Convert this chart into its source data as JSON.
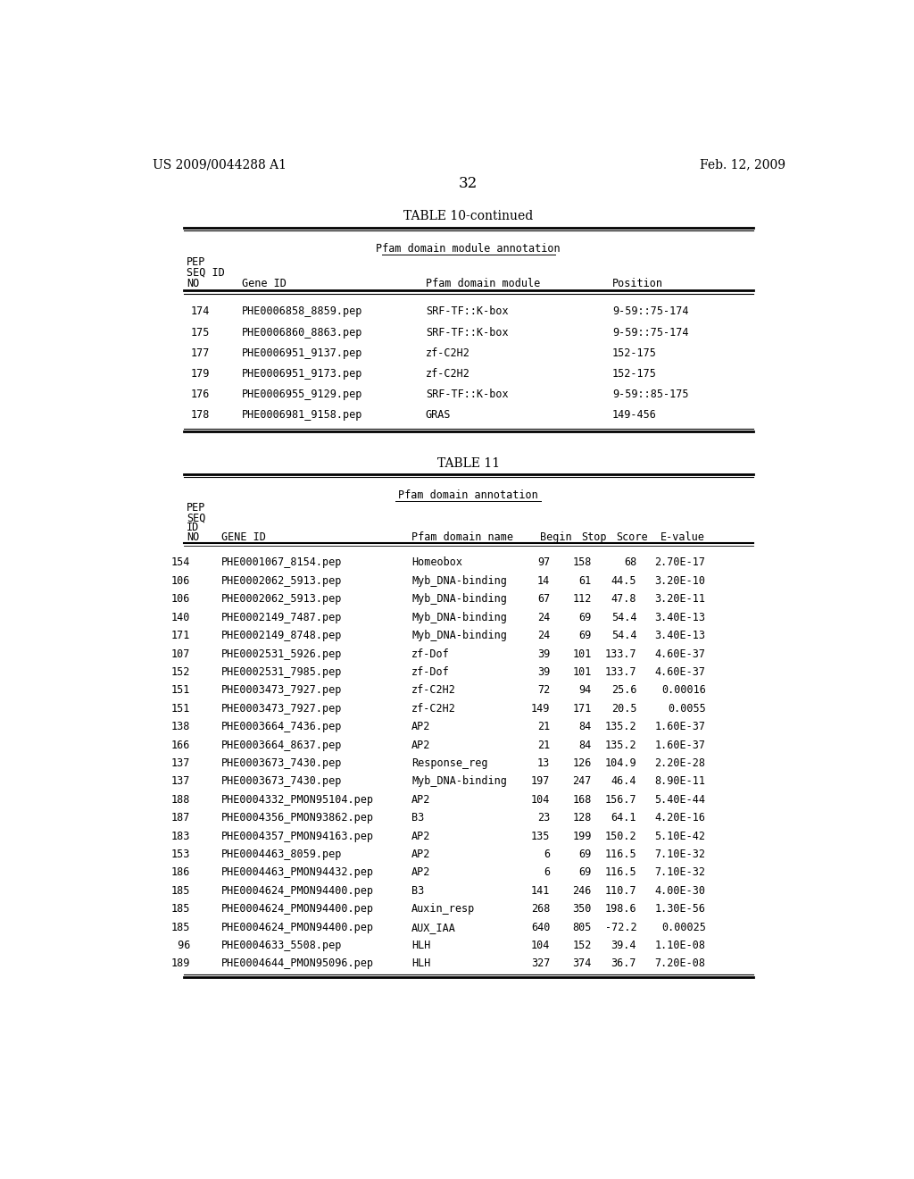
{
  "page_number": "32",
  "left_header": "US 2009/0044288 A1",
  "right_header": "Feb. 12, 2009",
  "table10_title": "TABLE 10-continued",
  "table10_subtitle": "Pfam domain module annotation",
  "table10_rows": [
    [
      "174",
      "PHE0006858_8859.pep",
      "SRF-TF::K-box",
      "9-59::75-174"
    ],
    [
      "175",
      "PHE0006860_8863.pep",
      "SRF-TF::K-box",
      "9-59::75-174"
    ],
    [
      "177",
      "PHE0006951_9137.pep",
      "zf-C2H2",
      "152-175"
    ],
    [
      "179",
      "PHE0006951_9173.pep",
      "zf-C2H2",
      "152-175"
    ],
    [
      "176",
      "PHE0006955_9129.pep",
      "SRF-TF::K-box",
      "9-59::85-175"
    ],
    [
      "178",
      "PHE0006981_9158.pep",
      "GRAS",
      "149-456"
    ]
  ],
  "table11_title": "TABLE 11",
  "table11_subtitle": "Pfam domain annotation",
  "table11_rows": [
    [
      "154",
      "PHE0001067_8154.pep",
      "Homeobox",
      "97",
      "158",
      "68",
      "2.70E-17"
    ],
    [
      "106",
      "PHE0002062_5913.pep",
      "Myb_DNA-binding",
      "14",
      "61",
      "44.5",
      "3.20E-10"
    ],
    [
      "106",
      "PHE0002062_5913.pep",
      "Myb_DNA-binding",
      "67",
      "112",
      "47.8",
      "3.20E-11"
    ],
    [
      "140",
      "PHE0002149_7487.pep",
      "Myb_DNA-binding",
      "24",
      "69",
      "54.4",
      "3.40E-13"
    ],
    [
      "171",
      "PHE0002149_8748.pep",
      "Myb_DNA-binding",
      "24",
      "69",
      "54.4",
      "3.40E-13"
    ],
    [
      "107",
      "PHE0002531_5926.pep",
      "zf-Dof",
      "39",
      "101",
      "133.7",
      "4.60E-37"
    ],
    [
      "152",
      "PHE0002531_7985.pep",
      "zf-Dof",
      "39",
      "101",
      "133.7",
      "4.60E-37"
    ],
    [
      "151",
      "PHE0003473_7927.pep",
      "zf-C2H2",
      "72",
      "94",
      "25.6",
      "0.00016"
    ],
    [
      "151",
      "PHE0003473_7927.pep",
      "zf-C2H2",
      "149",
      "171",
      "20.5",
      "0.0055"
    ],
    [
      "138",
      "PHE0003664_7436.pep",
      "AP2",
      "21",
      "84",
      "135.2",
      "1.60E-37"
    ],
    [
      "166",
      "PHE0003664_8637.pep",
      "AP2",
      "21",
      "84",
      "135.2",
      "1.60E-37"
    ],
    [
      "137",
      "PHE0003673_7430.pep",
      "Response_reg",
      "13",
      "126",
      "104.9",
      "2.20E-28"
    ],
    [
      "137",
      "PHE0003673_7430.pep",
      "Myb_DNA-binding",
      "197",
      "247",
      "46.4",
      "8.90E-11"
    ],
    [
      "188",
      "PHE0004332_PMON95104.pep",
      "AP2",
      "104",
      "168",
      "156.7",
      "5.40E-44"
    ],
    [
      "187",
      "PHE0004356_PMON93862.pep",
      "B3",
      "23",
      "128",
      "64.1",
      "4.20E-16"
    ],
    [
      "183",
      "PHE0004357_PMON94163.pep",
      "AP2",
      "135",
      "199",
      "150.2",
      "5.10E-42"
    ],
    [
      "153",
      "PHE0004463_8059.pep",
      "AP2",
      "6",
      "69",
      "116.5",
      "7.10E-32"
    ],
    [
      "186",
      "PHE0004463_PMON94432.pep",
      "AP2",
      "6",
      "69",
      "116.5",
      "7.10E-32"
    ],
    [
      "185",
      "PHE0004624_PMON94400.pep",
      "B3",
      "141",
      "246",
      "110.7",
      "4.00E-30"
    ],
    [
      "185",
      "PHE0004624_PMON94400.pep",
      "Auxin_resp",
      "268",
      "350",
      "198.6",
      "1.30E-56"
    ],
    [
      "185",
      "PHE0004624_PMON94400.pep",
      "AUX_IAA",
      "640",
      "805",
      "-72.2",
      "0.00025"
    ],
    [
      " 96",
      "PHE0004633_5508.pep",
      "HLH",
      "104",
      "152",
      "39.4",
      "1.10E-08"
    ],
    [
      "189",
      "PHE0004644_PMON95096.pep",
      "HLH",
      "327",
      "374",
      "36.7",
      "7.20E-08"
    ]
  ],
  "bg_color": "#ffffff",
  "text_color": "#000000",
  "font_size": 8.5,
  "mono_font": "DejaVu Sans Mono"
}
